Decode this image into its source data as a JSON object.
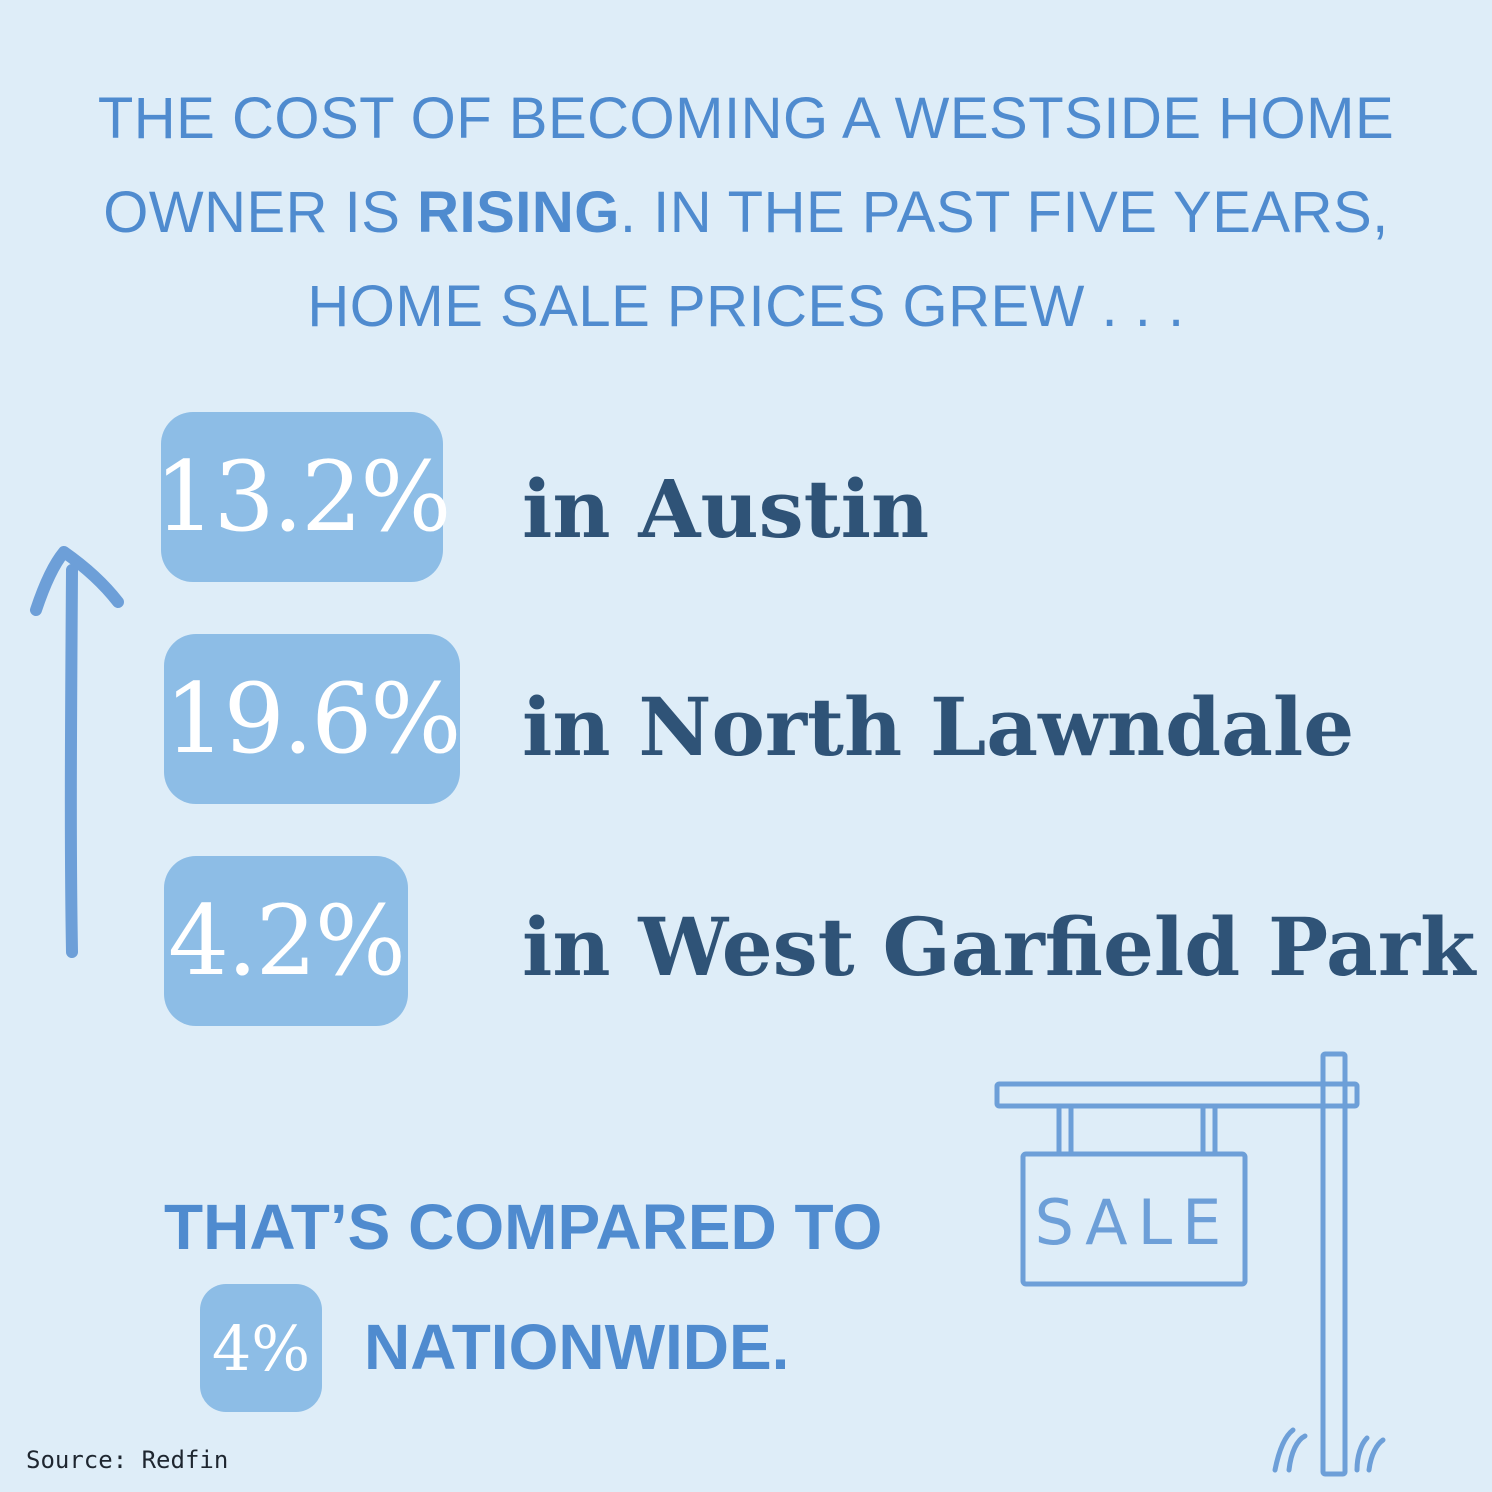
{
  "headline": {
    "line1": "THE COST OF BECOMING A WESTSIDE HOME",
    "line2_prefix": "OWNER IS ",
    "line2_bold": "RISING",
    "line2_suffix": ". IN THE PAST FIVE YEARS,",
    "line3": "HOME SALE PRICES GREW . . ."
  },
  "stats": [
    {
      "value": "13.2%",
      "label": "in Austin"
    },
    {
      "value": "19.6%",
      "label": "in North Lawndale"
    },
    {
      "value": "4.2%",
      "label": "in West Garfield Park"
    }
  ],
  "comparison": {
    "line1": "THAT’S COMPARED TO",
    "value": "4%",
    "line2": "NATIONWIDE."
  },
  "sign": {
    "text": "SALE"
  },
  "source": "Source: Redfin",
  "icons": {
    "arrow": "up-arrow-icon",
    "sign": "for-sale-sign-icon"
  },
  "colors": {
    "background": "#deedf8",
    "accent": "#4f8bcf",
    "badge": "#8dbde6",
    "label": "#2f5377"
  }
}
